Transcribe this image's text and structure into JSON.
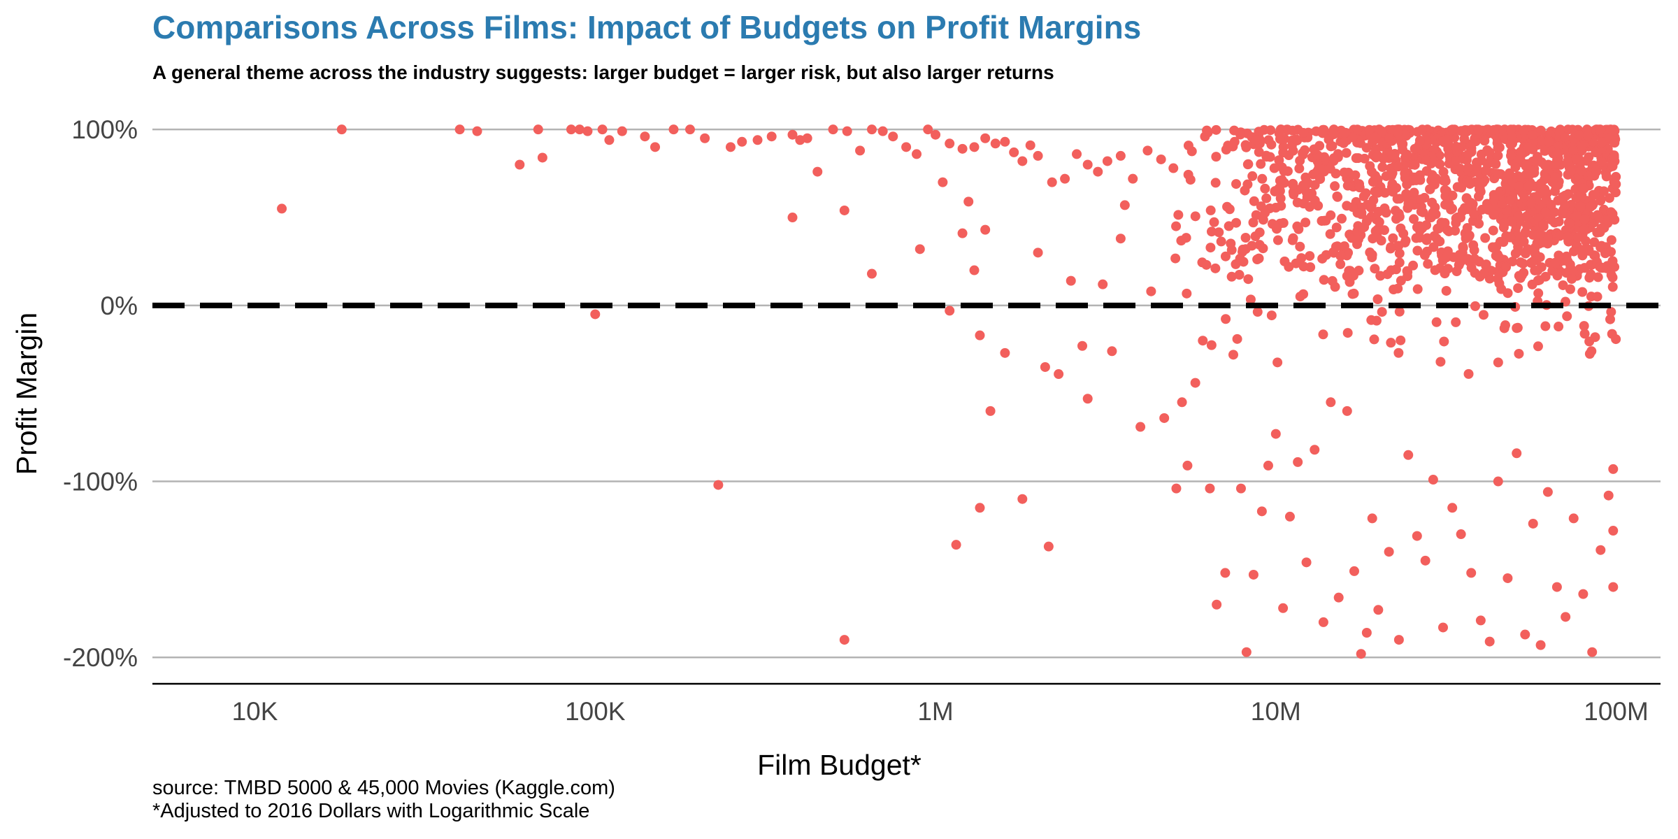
{
  "chart_data": {
    "type": "scatter",
    "title": "Comparisons Across Films: Impact of Budgets on Profit Margins",
    "subtitle": "A general theme across the industry suggests: larger budget = larger risk, but also larger returns",
    "xlabel": "Film Budget*",
    "ylabel": "Profit Margin",
    "x_scale": "log10",
    "x_ticks": [
      10000,
      100000,
      1000000,
      10000000,
      100000000
    ],
    "x_tick_labels": [
      "10K",
      "100K",
      "1M",
      "10M",
      "100M"
    ],
    "y_ticks": [
      100,
      0,
      -100,
      -200
    ],
    "y_tick_labels": [
      "100%",
      "0%",
      "-100%",
      "-200%"
    ],
    "xlim": [
      5000,
      135000000
    ],
    "ylim": [
      -215,
      110
    ],
    "grid": "horizontal major lines",
    "reference_line": {
      "y": 0,
      "style": "dashed",
      "color": "#000000"
    },
    "point_color": "#f25f5c",
    "series": [
      {
        "points": [
          [
            12000,
            55
          ],
          [
            18000,
            100
          ],
          [
            40000,
            100
          ],
          [
            45000,
            99
          ],
          [
            60000,
            80
          ],
          [
            68000,
            100
          ],
          [
            70000,
            84
          ],
          [
            85000,
            100
          ],
          [
            90000,
            100
          ],
          [
            95000,
            99
          ],
          [
            105000,
            100
          ],
          [
            110000,
            94
          ],
          [
            120000,
            99
          ],
          [
            140000,
            96
          ],
          [
            150000,
            90
          ],
          [
            170000,
            100
          ],
          [
            190000,
            100
          ],
          [
            210000,
            95
          ],
          [
            250000,
            90
          ],
          [
            270000,
            93
          ],
          [
            300000,
            94
          ],
          [
            330000,
            96
          ],
          [
            380000,
            97
          ],
          [
            400000,
            94
          ],
          [
            420000,
            95
          ],
          [
            450000,
            76
          ],
          [
            500000,
            100
          ],
          [
            550000,
            99
          ],
          [
            600000,
            88
          ],
          [
            650000,
            100
          ],
          [
            700000,
            99
          ],
          [
            750000,
            96
          ],
          [
            820000,
            90
          ],
          [
            880000,
            86
          ],
          [
            950000,
            100
          ],
          [
            1000000,
            97
          ],
          [
            1100000,
            92
          ],
          [
            1200000,
            89
          ],
          [
            1300000,
            90
          ],
          [
            1400000,
            95
          ],
          [
            1500000,
            92
          ],
          [
            1600000,
            93
          ],
          [
            1700000,
            87
          ],
          [
            1800000,
            82
          ],
          [
            1900000,
            91
          ],
          [
            2000000,
            85
          ],
          [
            2200000,
            70
          ],
          [
            2400000,
            72
          ],
          [
            2600000,
            86
          ],
          [
            2800000,
            80
          ],
          [
            3000000,
            76
          ],
          [
            3200000,
            82
          ],
          [
            3500000,
            85
          ],
          [
            3800000,
            72
          ],
          [
            4200000,
            88
          ],
          [
            4600000,
            83
          ],
          [
            5000000,
            78
          ],
          [
            100000,
            -5
          ],
          [
            230000,
            -102
          ],
          [
            380000,
            50
          ],
          [
            540000,
            -190
          ],
          [
            540000,
            54
          ],
          [
            650000,
            18
          ],
          [
            900000,
            32
          ],
          [
            1050000,
            70
          ],
          [
            1100000,
            -3
          ],
          [
            1150000,
            -136
          ],
          [
            1200000,
            41
          ],
          [
            1250000,
            59
          ],
          [
            1300000,
            20
          ],
          [
            1350000,
            -115
          ],
          [
            1350000,
            -17
          ],
          [
            1400000,
            43
          ],
          [
            1450000,
            -60
          ],
          [
            1600000,
            -27
          ],
          [
            1800000,
            -110
          ],
          [
            2000000,
            30
          ],
          [
            2100000,
            -35
          ],
          [
            2150000,
            -137
          ],
          [
            2300000,
            -39
          ],
          [
            2500000,
            14
          ],
          [
            2700000,
            -23
          ],
          [
            2800000,
            -53
          ],
          [
            3100000,
            12
          ],
          [
            3300000,
            -26
          ],
          [
            3500000,
            38
          ],
          [
            3600000,
            57
          ],
          [
            4000000,
            -69
          ],
          [
            4300000,
            8
          ],
          [
            4700000,
            -64
          ],
          [
            5100000,
            -104
          ],
          [
            5300000,
            -55
          ],
          [
            5500000,
            -91
          ],
          [
            5800000,
            -44
          ],
          [
            6100000,
            -20
          ],
          [
            6400000,
            -104
          ],
          [
            6700000,
            -170
          ],
          [
            7100000,
            -152
          ],
          [
            7500000,
            -28
          ],
          [
            7900000,
            -104
          ],
          [
            8200000,
            -197
          ],
          [
            8600000,
            -153
          ],
          [
            9100000,
            -117
          ],
          [
            9500000,
            -91
          ],
          [
            10000000,
            -73
          ],
          [
            10500000,
            -172
          ],
          [
            11000000,
            -120
          ],
          [
            11600000,
            -89
          ],
          [
            12300000,
            -146
          ],
          [
            13000000,
            -82
          ],
          [
            13800000,
            -180
          ],
          [
            14500000,
            -55
          ],
          [
            15300000,
            -166
          ],
          [
            16200000,
            -60
          ],
          [
            17000000,
            -151
          ],
          [
            17800000,
            -198
          ],
          [
            18500000,
            -186
          ],
          [
            19200000,
            -121
          ],
          [
            20000000,
            -173
          ],
          [
            21500000,
            -140
          ],
          [
            23000000,
            -190
          ],
          [
            24500000,
            -85
          ],
          [
            26000000,
            -131
          ],
          [
            27500000,
            -145
          ],
          [
            29000000,
            -99
          ],
          [
            31000000,
            -183
          ],
          [
            33000000,
            -115
          ],
          [
            35000000,
            -130
          ],
          [
            37500000,
            -152
          ],
          [
            40000000,
            -179
          ],
          [
            42500000,
            -191
          ],
          [
            45000000,
            -100
          ],
          [
            48000000,
            -155
          ],
          [
            51000000,
            -84
          ],
          [
            54000000,
            -187
          ],
          [
            57000000,
            -124
          ],
          [
            60000000,
            -193
          ],
          [
            63000000,
            -106
          ],
          [
            67000000,
            -160
          ],
          [
            71000000,
            -177
          ],
          [
            75000000,
            -121
          ],
          [
            80000000,
            -164
          ],
          [
            85000000,
            -197
          ],
          [
            90000000,
            -139
          ],
          [
            95000000,
            -108
          ],
          [
            98000000,
            -160
          ],
          [
            98000000,
            -128
          ],
          [
            98000000,
            -93
          ]
        ]
      }
    ],
    "caption": [
      "source: TMBD 5000 & 45,000 Movies (Kaggle.com)",
      "*Adjusted to 2016 Dollars with Logarithmic Scale"
    ]
  }
}
